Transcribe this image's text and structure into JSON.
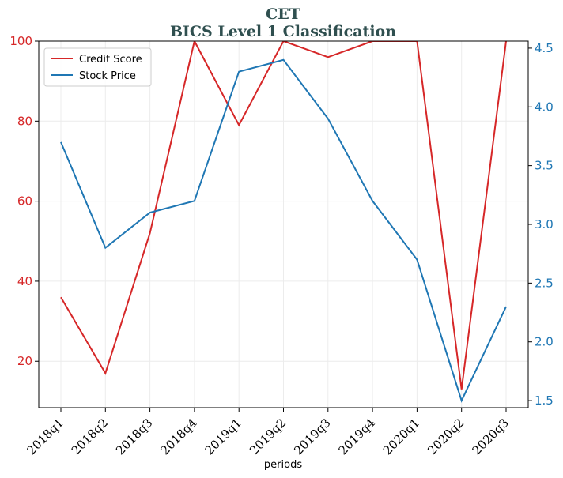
{
  "chart_data": {
    "type": "line",
    "title": "CET",
    "subtitle": "BICS Level 1 Classification",
    "xlabel": "periods",
    "ylabel_left": "",
    "ylabel_right": "",
    "categories": [
      "2018q1",
      "2018q2",
      "2018q3",
      "2018q4",
      "2019q1",
      "2019q2",
      "2019q3",
      "2019q4",
      "2020q1",
      "2020q2",
      "2020q3"
    ],
    "series": [
      {
        "name": "Credit Score",
        "axis": "left",
        "color": "#d62728",
        "values": [
          36,
          17,
          52,
          100,
          79,
          100,
          96,
          100,
          100,
          13,
          100
        ]
      },
      {
        "name": "Stock Price",
        "axis": "right",
        "color": "#1f77b4",
        "values": [
          3.7,
          2.8,
          3.1,
          3.2,
          4.3,
          4.4,
          3.9,
          3.2,
          2.7,
          1.5,
          2.3
        ]
      }
    ],
    "ylim_left": [
      8.4,
      100
    ],
    "ylim_right": [
      1.44,
      4.56
    ],
    "yticks_left": [
      20,
      40,
      60,
      80,
      100
    ],
    "yticks_right": [
      1.5,
      2.0,
      2.5,
      3.0,
      3.5,
      4.0,
      4.5
    ],
    "grid": true,
    "legend_position": "upper-left",
    "title_color": "#2f4f4f"
  }
}
